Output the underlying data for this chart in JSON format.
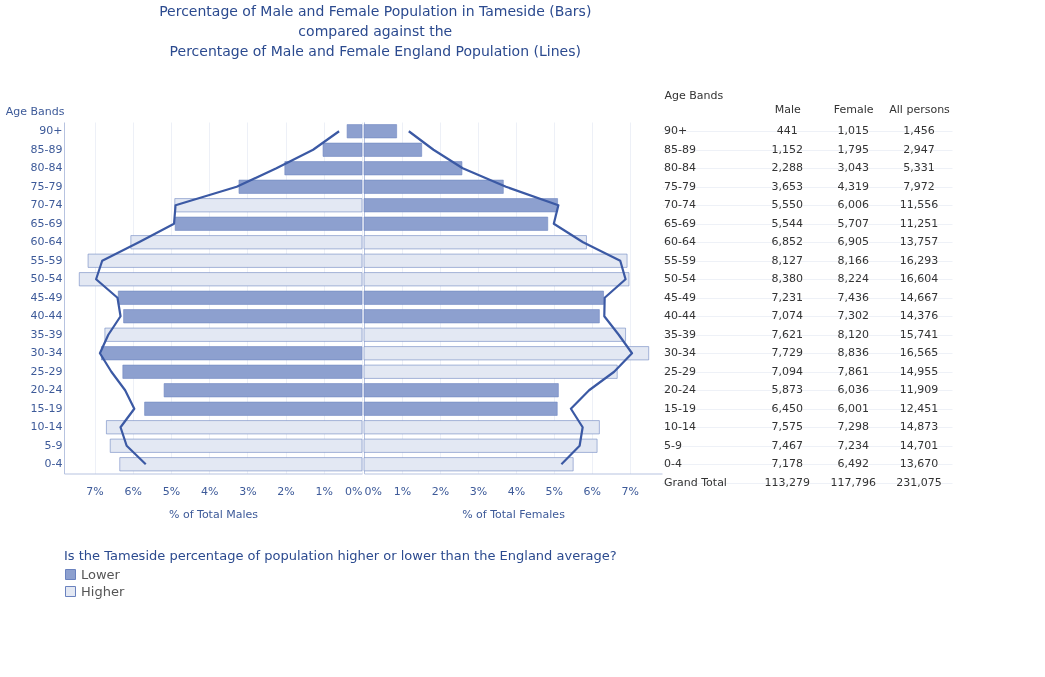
{
  "chart_data": [
    {
      "type": "bar",
      "orientation": "horizontal",
      "title": "Percentage of Male and Female Population in Tameside (Bars)\ncompared against the\nPercentage of Male and Female England Population (Lines)",
      "xlabel": "% of Total Males",
      "ylabel": "Age Bands",
      "legend_title": "Is the Tameside percentage of population higher or lower than the England average?",
      "legend": "bottom",
      "grid": "x",
      "categories": [
        "90+",
        "85-89",
        "80-84",
        "75-79",
        "70-74",
        "65-69",
        "60-64",
        "55-59",
        "50-54",
        "45-49",
        "40-44",
        "35-39",
        "30-34",
        "25-29",
        "20-24",
        "15-19",
        "10-14",
        "5-9",
        "0-4"
      ],
      "xlim": [
        7.8,
        0
      ],
      "xticks": [
        {
          "value": 7,
          "label": "7%"
        },
        {
          "value": 6,
          "label": "6%"
        },
        {
          "value": 5,
          "label": "5%"
        },
        {
          "value": 4,
          "label": "4%"
        },
        {
          "value": 3,
          "label": "3%"
        },
        {
          "value": 2,
          "label": "2%"
        },
        {
          "value": 1,
          "label": "1%"
        },
        {
          "value": 0,
          "label": "0%"
        }
      ],
      "series": [
        {
          "name": "Lower",
          "color": "#8da0cf",
          "values": [
            0.39,
            1.02,
            2.02,
            3.22,
            null,
            4.89,
            null,
            null,
            null,
            6.38,
            6.24,
            null,
            6.82,
            6.26,
            5.18,
            5.69,
            null,
            null,
            null
          ]
        },
        {
          "name": "Higher",
          "color": "#e3e8f3",
          "values": [
            null,
            null,
            null,
            null,
            4.9,
            null,
            6.05,
            7.17,
            7.4,
            null,
            null,
            6.73,
            null,
            null,
            null,
            null,
            6.69,
            6.59,
            6.34
          ]
        },
        {
          "type": "line",
          "color": "#3b59a4",
          "values": [
            0.6,
            1.28,
            2.24,
            3.28,
            4.88,
            4.92,
            5.84,
            6.8,
            6.96,
            6.4,
            6.32,
            6.64,
            6.86,
            6.56,
            6.2,
            5.96,
            6.32,
            6.16,
            5.66
          ]
        }
      ]
    },
    {
      "type": "bar",
      "orientation": "horizontal",
      "xlabel": "% of Total Females",
      "grid": "x",
      "tick_labels": "x",
      "categories": [
        null,
        null,
        null,
        null,
        null,
        null,
        null,
        null,
        null,
        null,
        null,
        null,
        null,
        null,
        null,
        null,
        null,
        null,
        null
      ],
      "xlim": [
        0,
        7.85
      ],
      "xticks": [
        {
          "value": 0,
          "label": "0%"
        },
        {
          "value": 1,
          "label": "1%"
        },
        {
          "value": 2,
          "label": "2%"
        },
        {
          "value": 3,
          "label": "3%"
        },
        {
          "value": 4,
          "label": "4%"
        },
        {
          "value": 5,
          "label": "5%"
        },
        {
          "value": 6,
          "label": "6%"
        },
        {
          "value": 7,
          "label": "7%"
        }
      ],
      "series": [
        {
          "name": "Lower",
          "color": "#8da0cf",
          "values": [
            0.86,
            1.52,
            2.58,
            3.67,
            5.1,
            4.84,
            null,
            null,
            null,
            6.31,
            6.2,
            null,
            null,
            null,
            5.12,
            5.09,
            null,
            null,
            null
          ]
        },
        {
          "name": "Higher",
          "color": "#e3e8f3",
          "values": [
            null,
            null,
            null,
            null,
            null,
            null,
            5.86,
            6.93,
            6.98,
            null,
            null,
            6.89,
            7.5,
            6.67,
            null,
            null,
            6.2,
            6.14,
            5.51
          ]
        },
        {
          "type": "line",
          "color": "#3b59a4",
          "values": [
            1.18,
            1.83,
            2.6,
            3.74,
            5.12,
            5.0,
            5.77,
            6.75,
            6.89,
            6.34,
            6.33,
            6.71,
            7.06,
            6.59,
            5.93,
            5.45,
            5.76,
            5.68,
            5.2
          ]
        }
      ]
    },
    {
      "type": "other",
      "ylabel": "Age Bands",
      "categories": [
        "90+",
        "85-89",
        "80-84",
        "75-79",
        "70-74",
        "65-69",
        "60-64",
        "55-59",
        "50-54",
        "45-49",
        "40-44",
        "35-39",
        "30-34",
        "25-29",
        "20-24",
        "15-19",
        "10-14",
        "5-9",
        "0-4",
        "Grand Total"
      ],
      "series": [
        {
          "name": "Male",
          "values": [
            441,
            1152,
            2288,
            3653,
            5550,
            5544,
            6852,
            8127,
            8380,
            7231,
            7074,
            7621,
            7729,
            7094,
            5873,
            6450,
            7575,
            7467,
            7178,
            113279
          ],
          "value_labels": [
            "441",
            "1,152",
            "2,288",
            "3,653",
            "5,550",
            "5,544",
            "6,852",
            "8,127",
            "8,380",
            "7,231",
            "7,074",
            "7,621",
            "7,729",
            "7,094",
            "5,873",
            "6,450",
            "7,575",
            "7,467",
            "7,178",
            "113,279"
          ]
        },
        {
          "name": "Female",
          "values": [
            1015,
            1795,
            3043,
            4319,
            6006,
            5707,
            6905,
            8166,
            8224,
            7436,
            7302,
            8120,
            8836,
            7861,
            6036,
            6001,
            7298,
            7234,
            6492,
            117796
          ],
          "value_labels": [
            "1,015",
            "1,795",
            "3,043",
            "4,319",
            "6,006",
            "5,707",
            "6,905",
            "8,166",
            "8,224",
            "7,436",
            "7,302",
            "8,120",
            "8,836",
            "7,861",
            "6,036",
            "6,001",
            "7,298",
            "7,234",
            "6,492",
            "117,796"
          ]
        },
        {
          "name": "All persons",
          "values": [
            1456,
            2947,
            5331,
            7972,
            11556,
            11251,
            13757,
            16293,
            16604,
            14667,
            14376,
            15741,
            16565,
            14955,
            11909,
            12451,
            14873,
            14701,
            13670,
            231075
          ],
          "value_labels": [
            "1,456",
            "2,947",
            "5,331",
            "7,972",
            "11,556",
            "11,251",
            "13,757",
            "16,293",
            "16,604",
            "14,667",
            "14,376",
            "15,741",
            "16,565",
            "14,955",
            "11,909",
            "12,451",
            "14,873",
            "14,701",
            "13,670",
            "231,075"
          ]
        }
      ]
    }
  ]
}
